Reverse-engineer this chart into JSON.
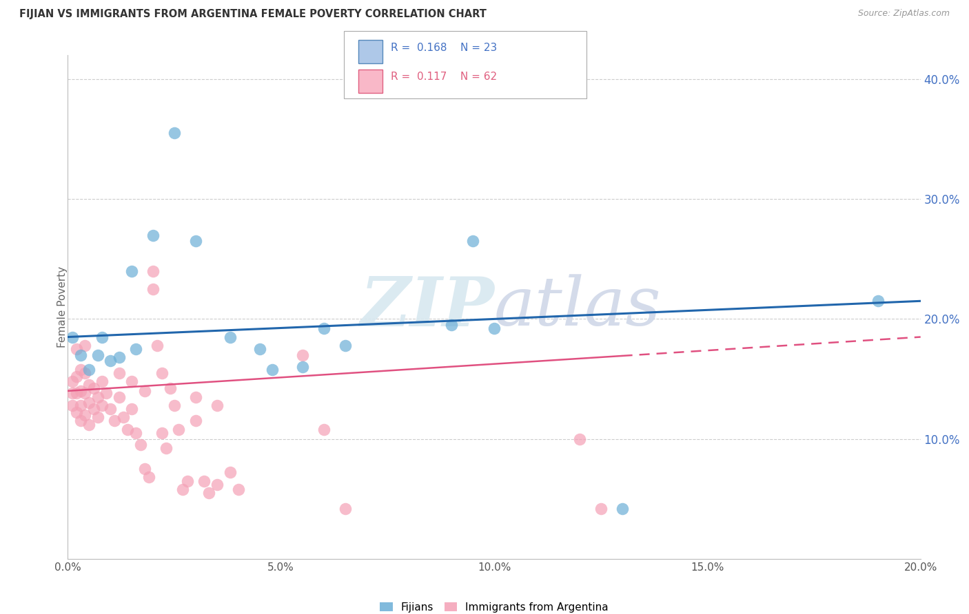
{
  "title": "FIJIAN VS IMMIGRANTS FROM ARGENTINA FEMALE POVERTY CORRELATION CHART",
  "source": "Source: ZipAtlas.com",
  "ylabel": "Female Poverty",
  "xlim": [
    0.0,
    0.2
  ],
  "ylim": [
    0.0,
    0.42
  ],
  "xticks": [
    0.0,
    0.05,
    0.1,
    0.15,
    0.2
  ],
  "yticks_right": [
    0.1,
    0.2,
    0.3,
    0.4
  ],
  "ytick_labels_right": [
    "10.0%",
    "20.0%",
    "30.0%",
    "40.0%"
  ],
  "xtick_labels": [
    "0.0%",
    "5.0%",
    "10.0%",
    "15.0%",
    "20.0%"
  ],
  "fijian_color": "#6baed6",
  "argentina_color": "#f4a0b5",
  "fijian_line_color": "#2166ac",
  "argentina_line_color": "#e05080",
  "legend_label_1": "Fijians",
  "legend_label_2": "Immigrants from Argentina",
  "fijian_points": [
    [
      0.001,
      0.185
    ],
    [
      0.003,
      0.17
    ],
    [
      0.005,
      0.158
    ],
    [
      0.007,
      0.17
    ],
    [
      0.008,
      0.185
    ],
    [
      0.01,
      0.165
    ],
    [
      0.012,
      0.168
    ],
    [
      0.015,
      0.24
    ],
    [
      0.016,
      0.175
    ],
    [
      0.02,
      0.27
    ],
    [
      0.025,
      0.355
    ],
    [
      0.03,
      0.265
    ],
    [
      0.038,
      0.185
    ],
    [
      0.045,
      0.175
    ],
    [
      0.048,
      0.158
    ],
    [
      0.055,
      0.16
    ],
    [
      0.06,
      0.192
    ],
    [
      0.065,
      0.178
    ],
    [
      0.09,
      0.195
    ],
    [
      0.095,
      0.265
    ],
    [
      0.1,
      0.192
    ],
    [
      0.13,
      0.042
    ],
    [
      0.19,
      0.215
    ]
  ],
  "argentina_points": [
    [
      0.001,
      0.148
    ],
    [
      0.001,
      0.138
    ],
    [
      0.001,
      0.128
    ],
    [
      0.002,
      0.175
    ],
    [
      0.002,
      0.152
    ],
    [
      0.002,
      0.138
    ],
    [
      0.002,
      0.122
    ],
    [
      0.003,
      0.158
    ],
    [
      0.003,
      0.14
    ],
    [
      0.003,
      0.128
    ],
    [
      0.003,
      0.115
    ],
    [
      0.004,
      0.178
    ],
    [
      0.004,
      0.155
    ],
    [
      0.004,
      0.138
    ],
    [
      0.004,
      0.12
    ],
    [
      0.005,
      0.145
    ],
    [
      0.005,
      0.13
    ],
    [
      0.005,
      0.112
    ],
    [
      0.006,
      0.142
    ],
    [
      0.006,
      0.125
    ],
    [
      0.007,
      0.135
    ],
    [
      0.007,
      0.118
    ],
    [
      0.008,
      0.148
    ],
    [
      0.008,
      0.128
    ],
    [
      0.009,
      0.138
    ],
    [
      0.01,
      0.125
    ],
    [
      0.011,
      0.115
    ],
    [
      0.012,
      0.155
    ],
    [
      0.012,
      0.135
    ],
    [
      0.013,
      0.118
    ],
    [
      0.014,
      0.108
    ],
    [
      0.015,
      0.148
    ],
    [
      0.015,
      0.125
    ],
    [
      0.016,
      0.105
    ],
    [
      0.017,
      0.095
    ],
    [
      0.018,
      0.14
    ],
    [
      0.018,
      0.075
    ],
    [
      0.019,
      0.068
    ],
    [
      0.02,
      0.24
    ],
    [
      0.02,
      0.225
    ],
    [
      0.021,
      0.178
    ],
    [
      0.022,
      0.155
    ],
    [
      0.022,
      0.105
    ],
    [
      0.023,
      0.092
    ],
    [
      0.024,
      0.142
    ],
    [
      0.025,
      0.128
    ],
    [
      0.026,
      0.108
    ],
    [
      0.027,
      0.058
    ],
    [
      0.028,
      0.065
    ],
    [
      0.03,
      0.135
    ],
    [
      0.03,
      0.115
    ],
    [
      0.032,
      0.065
    ],
    [
      0.033,
      0.055
    ],
    [
      0.035,
      0.128
    ],
    [
      0.035,
      0.062
    ],
    [
      0.038,
      0.072
    ],
    [
      0.04,
      0.058
    ],
    [
      0.055,
      0.17
    ],
    [
      0.06,
      0.108
    ],
    [
      0.065,
      0.042
    ],
    [
      0.12,
      0.1
    ],
    [
      0.125,
      0.042
    ]
  ]
}
